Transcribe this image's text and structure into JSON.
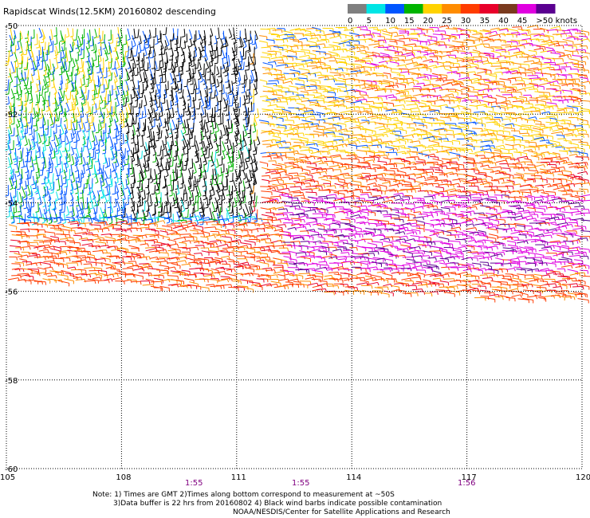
{
  "title": "Rapidscat Winds(12.5KM) 20160802 descending",
  "legend": {
    "labels": [
      "0",
      "5",
      "10",
      "15",
      "20",
      "25",
      "30",
      "35",
      "40",
      "45",
      ">50 knots"
    ],
    "colors": [
      "#7f7f7f",
      "#00e5e5",
      "#0055ff",
      "#00b400",
      "#ffd200",
      "#ff8c00",
      "#ff3c00",
      "#e8002a",
      "#7a3a1e",
      "#e000e0",
      "#5a0090"
    ]
  },
  "axes": {
    "lon_labels": [
      "105",
      "108",
      "111",
      "114",
      "117",
      "120"
    ],
    "lat_labels": [
      "-50",
      "-52",
      "-54",
      "-56",
      "-58",
      "-60"
    ]
  },
  "times": [
    "1:55",
    "1:55",
    "1:56"
  ],
  "notes": [
    "Note: 1) Times are GMT 2)Times along bottom correspond to measurement at ~50S",
    "3)Data buffer is 22 hrs from 20160802 4) Black wind barbs indicate possible contamination",
    "NOAA/NESDIS/Center for Satellite Applications and Research"
  ],
  "map_data": {
    "lon_range": [
      105,
      120
    ],
    "lat_range": [
      -60,
      -50
    ],
    "wind_regions": [
      {
        "area": "northwest",
        "speed_knots": "15-25",
        "color": "#00b400"
      },
      {
        "area": "west center",
        "speed_knots": "10-15",
        "color": "#0055ff"
      },
      {
        "area": "north center",
        "speed_knots": "contaminated",
        "color": "#000000"
      },
      {
        "area": "northeast",
        "speed_knots": "20-30",
        "color": "#ffd200"
      },
      {
        "area": "southeast",
        "speed_knots": "40-50",
        "color": "#e000e0"
      },
      {
        "area": "south band",
        "speed_knots": "30-35",
        "color": "#ff3c00"
      }
    ]
  }
}
